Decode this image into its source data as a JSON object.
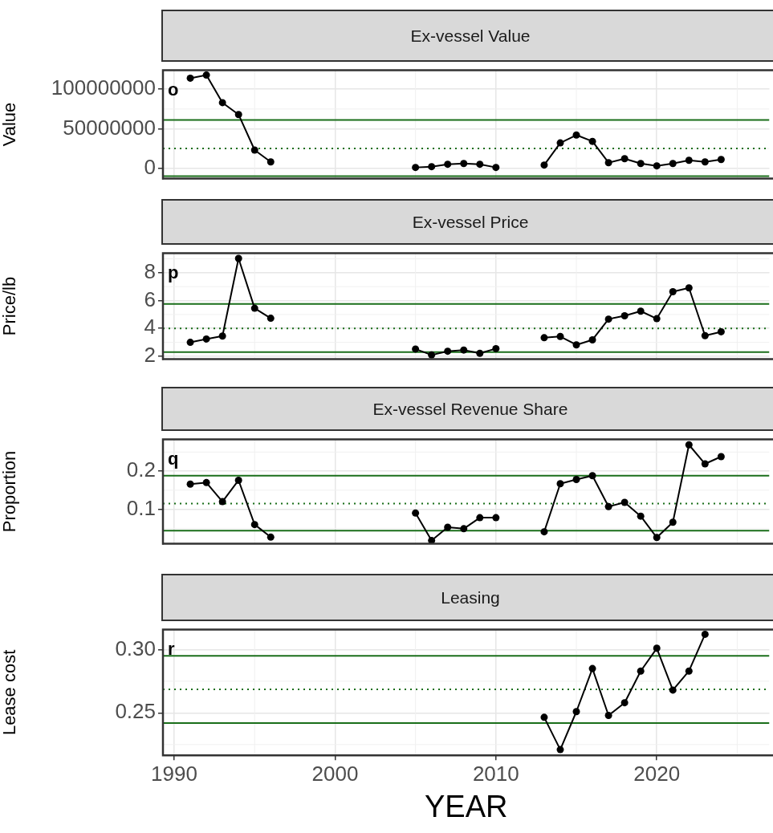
{
  "chart_data": [
    {
      "type": "line",
      "title": "Ex-vessel Value",
      "ylabel": "Value",
      "annotations": [
        "o"
      ],
      "grid": true,
      "legend": false,
      "marker": "circle",
      "line_style": "solid",
      "tick_labels": "y",
      "x": [
        1991,
        1992,
        1993,
        1994,
        1995,
        1996,
        1997,
        1998,
        1999,
        2000,
        2001,
        2002,
        2003,
        2004,
        2005,
        2006,
        2007,
        2008,
        2009,
        2010,
        2011,
        2012,
        2013,
        2014,
        2015,
        2016,
        2017,
        2018,
        2019,
        2020,
        2021,
        2022,
        2023,
        2024
      ],
      "series": [
        {
          "color": "#000000",
          "values": [
            114000000,
            118000000,
            83000000,
            68000000,
            23000000,
            8000000,
            null,
            null,
            null,
            null,
            null,
            null,
            null,
            null,
            1000000,
            2000000,
            5000000,
            6000000,
            5000000,
            1000000,
            null,
            null,
            4000000,
            32000000,
            42000000,
            34000000,
            7000000,
            12000000,
            6000000,
            3000000,
            6000000,
            10000000,
            8000000,
            11000000
          ]
        }
      ],
      "xlim": [
        1989.3,
        2027
      ],
      "xticks": [
        1990,
        2000,
        2010,
        2020
      ],
      "ylim": [
        -13000000,
        124000000
      ],
      "yticks": [
        0,
        50000000,
        100000000
      ],
      "ref_lines": [
        {
          "axis": "y",
          "value": 61000000,
          "color": "#1a6e1a",
          "line_style": "solid"
        },
        {
          "axis": "y",
          "value": 25000000,
          "color": "#1a6e1a",
          "line_style": "dotted"
        },
        {
          "axis": "y",
          "value": -10000000,
          "color": "#1a6e1a",
          "line_style": "solid"
        }
      ]
    },
    {
      "type": "line",
      "title": "Ex-vessel Price",
      "ylabel": "Price/lb",
      "annotations": [
        "p"
      ],
      "grid": true,
      "legend": false,
      "marker": "circle",
      "line_style": "solid",
      "tick_labels": "y",
      "x": [
        1991,
        1992,
        1993,
        1994,
        1995,
        1996,
        1997,
        1998,
        1999,
        2000,
        2001,
        2002,
        2003,
        2004,
        2005,
        2006,
        2007,
        2008,
        2009,
        2010,
        2011,
        2012,
        2013,
        2014,
        2015,
        2016,
        2017,
        2018,
        2019,
        2020,
        2021,
        2022,
        2023,
        2024
      ],
      "series": [
        {
          "color": "#000000",
          "values": [
            3.0,
            3.24,
            3.45,
            9.03,
            5.45,
            4.73,
            null,
            null,
            null,
            null,
            null,
            null,
            null,
            null,
            2.52,
            2.09,
            2.36,
            2.45,
            2.21,
            2.55,
            null,
            null,
            3.33,
            3.42,
            2.82,
            3.18,
            4.67,
            4.91,
            5.24,
            4.7,
            6.64,
            6.91,
            3.48,
            3.76
          ]
        }
      ],
      "xlim": [
        1989.3,
        2027
      ],
      "xticks": [
        1990,
        2000,
        2010,
        2020
      ],
      "ylim": [
        1.8,
        9.4
      ],
      "yticks": [
        2,
        4,
        6,
        8
      ],
      "ref_lines": [
        {
          "axis": "y",
          "value": 5.76,
          "color": "#1a6e1a",
          "line_style": "solid"
        },
        {
          "axis": "y",
          "value": 4.0,
          "color": "#1a6e1a",
          "line_style": "dotted"
        },
        {
          "axis": "y",
          "value": 2.3,
          "color": "#1a6e1a",
          "line_style": "solid"
        }
      ]
    },
    {
      "type": "line",
      "title": "Ex-vessel Revenue Share",
      "ylabel": "Proportion",
      "annotations": [
        "q"
      ],
      "grid": true,
      "legend": false,
      "marker": "circle",
      "line_style": "solid",
      "tick_labels": "y",
      "x": [
        1991,
        1992,
        1993,
        1994,
        1995,
        1996,
        1997,
        1998,
        1999,
        2000,
        2001,
        2002,
        2003,
        2004,
        2005,
        2006,
        2007,
        2008,
        2009,
        2010,
        2011,
        2012,
        2013,
        2014,
        2015,
        2016,
        2017,
        2018,
        2019,
        2020,
        2021,
        2022,
        2023,
        2024
      ],
      "series": [
        {
          "color": "#000000",
          "values": [
            0.166,
            0.17,
            0.12,
            0.176,
            0.06,
            0.027,
            null,
            null,
            null,
            null,
            null,
            null,
            null,
            null,
            0.09,
            0.018,
            0.053,
            0.049,
            0.078,
            0.078,
            null,
            null,
            0.041,
            0.167,
            0.178,
            0.188,
            0.107,
            0.118,
            0.082,
            0.026,
            0.066,
            0.269,
            0.219,
            0.238
          ]
        }
      ],
      "xlim": [
        1989.3,
        2027
      ],
      "xticks": [
        1990,
        2000,
        2010,
        2020
      ],
      "ylim": [
        0.01,
        0.283
      ],
      "yticks": [
        0.1,
        0.2
      ],
      "ref_lines": [
        {
          "axis": "y",
          "value": 0.188,
          "color": "#1a6e1a",
          "line_style": "solid"
        },
        {
          "axis": "y",
          "value": 0.115,
          "color": "#1a6e1a",
          "line_style": "dotted"
        },
        {
          "axis": "y",
          "value": 0.044,
          "color": "#1a6e1a",
          "line_style": "solid"
        }
      ]
    },
    {
      "type": "line",
      "title": "Leasing",
      "ylabel": "Lease cost",
      "xlabel": "YEAR",
      "annotations": [
        "r"
      ],
      "grid": true,
      "legend": false,
      "marker": "circle",
      "line_style": "solid",
      "x": [
        2013,
        2014,
        2015,
        2016,
        2017,
        2018,
        2019,
        2020,
        2021,
        2022,
        2023
      ],
      "series": [
        {
          "color": "#000000",
          "values": [
            0.2465,
            0.221,
            0.251,
            0.285,
            0.248,
            0.258,
            0.283,
            0.301,
            0.268,
            0.283,
            0.312
          ]
        }
      ],
      "xlim": [
        1989.3,
        2027
      ],
      "xticks": [
        1990,
        2000,
        2010,
        2020
      ],
      "ylim": [
        0.2165,
        0.3157
      ],
      "yticks": [
        0.25,
        {
          "value": 0.3,
          "label": "0.30"
        }
      ],
      "ref_lines": [
        {
          "axis": "y",
          "value": 0.295,
          "color": "#1a6e1a",
          "line_style": "solid"
        },
        {
          "axis": "y",
          "value": 0.2685,
          "color": "#1a6e1a",
          "line_style": "dotted"
        },
        {
          "axis": "y",
          "value": 0.242,
          "color": "#1a6e1a",
          "line_style": "solid"
        }
      ]
    }
  ]
}
